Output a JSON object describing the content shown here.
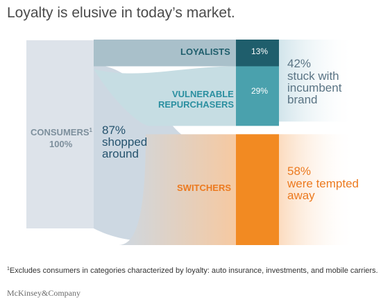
{
  "title": "Loyalty is elusive in today’s market.",
  "chart_data": {
    "type": "sankey",
    "colors": {
      "consumers": "#dde3ea",
      "shopped": "#cdd8e2",
      "loyalists_flow": "#a9c0ca",
      "vulnerable_flow": "#c6dde3",
      "loyalists": "#1f5e6c",
      "vulnerable": "#4aa1ad",
      "switchers": "#f28a22",
      "stuck_text": "#5a7484",
      "shopped_text": "#25536e",
      "orange_text": "#ec7a1f",
      "gray_text": "#7d8f9c"
    },
    "source": {
      "label": "CONSUMERS",
      "sup": "1",
      "value_text": "100%",
      "value": 100
    },
    "shopped": {
      "value": 87,
      "value_text": "87%",
      "text_line1": "shopped",
      "text_line2": "around"
    },
    "nodes": [
      {
        "id": "loyalists",
        "label": "LOYALISTS",
        "value": 13,
        "value_text": "13%"
      },
      {
        "id": "vulnerable",
        "label_line1": "VULNERABLE",
        "label_line2": "REPURCHASERS",
        "value": 29,
        "value_text": "29%"
      },
      {
        "id": "switchers",
        "label": "SWITCHERS",
        "value": 58
      }
    ],
    "summaries": [
      {
        "id": "stuck",
        "value": 42,
        "value_text": "42%",
        "line1": "stuck with",
        "line2": "incumbent",
        "line3": "brand"
      },
      {
        "id": "tempted",
        "value": 58,
        "value_text": "58%",
        "line1": "were tempted",
        "line2": "away"
      }
    ]
  },
  "footnote": {
    "sup": "1",
    "text": "Excludes consumers in categories characterized by loyalty: auto insurance, investments, and mobile carriers."
  },
  "brand": "McKinsey&Company"
}
